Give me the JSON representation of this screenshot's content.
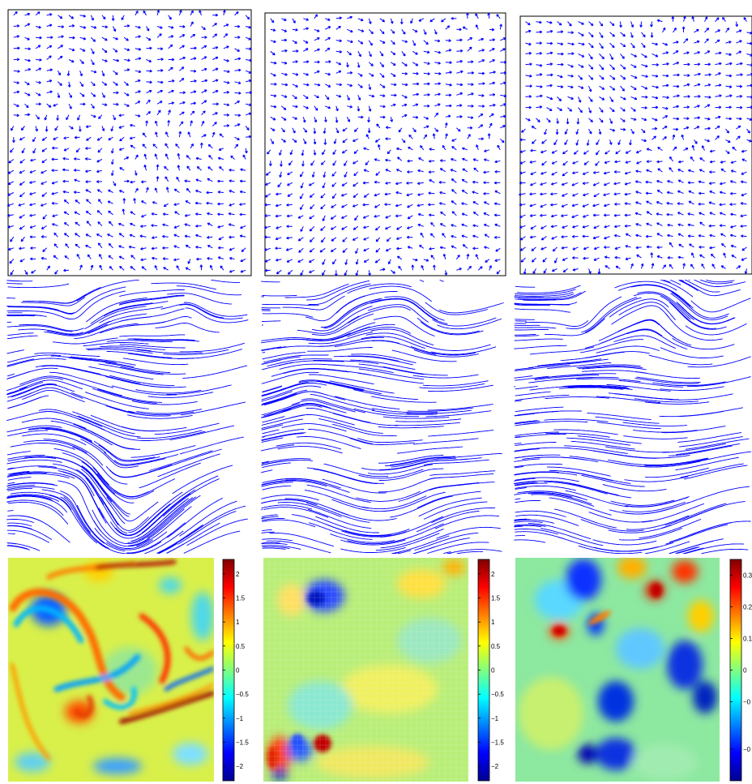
{
  "figure": {
    "rows": [
      "vector-field",
      "streamline",
      "vorticity-map"
    ],
    "columns": 3
  },
  "colorbars": [
    {
      "ticks": [
        "2",
        "1.5",
        "1",
        "0.5",
        "0",
        "−0.5",
        "−1",
        "−1.5",
        "−2"
      ],
      "range": [
        -2.3,
        2.3
      ]
    },
    {
      "ticks": [
        "2",
        "1.5",
        "1",
        "0.5",
        "0",
        "−0.5",
        "−1",
        "−1.5",
        "−2"
      ],
      "range": [
        -2.3,
        2.3
      ]
    },
    {
      "ticks": [
        "0.3",
        "0.2",
        "0.1",
        "0",
        "−0",
        "−0"
      ],
      "range": [
        -0.35,
        0.35
      ]
    }
  ],
  "colors": {
    "vectors": "#0000ff",
    "streamlines": "#0000ff",
    "colormap": [
      "#00008f",
      "#0000ff",
      "#00ffff",
      "#ffff00",
      "#ff0000",
      "#800000"
    ],
    "background": "#ffffff",
    "frame": "#000000"
  }
}
